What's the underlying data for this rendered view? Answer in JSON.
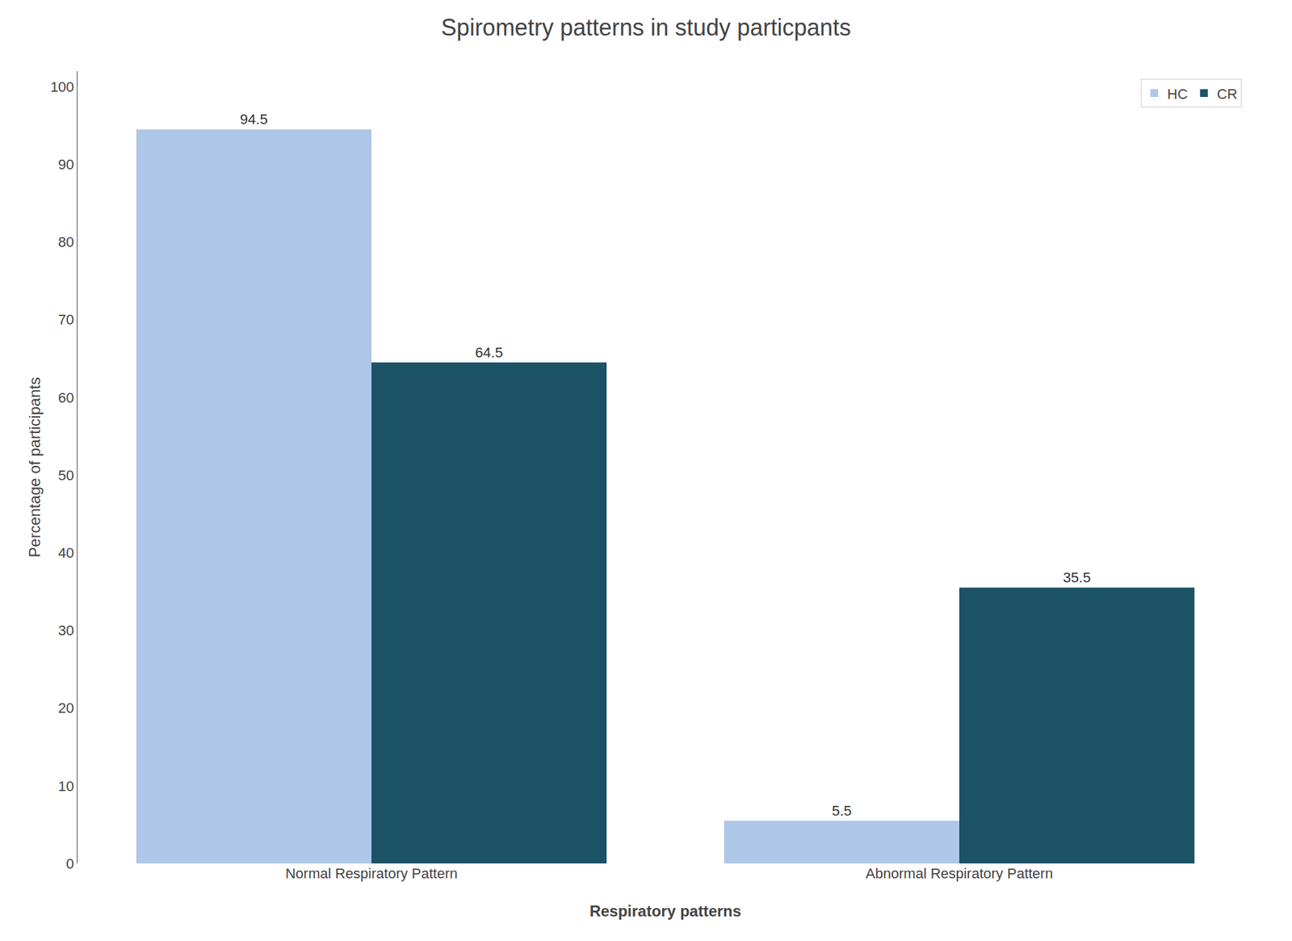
{
  "chart_data": {
    "type": "bar",
    "title": "Spirometry patterns in study particpants",
    "xlabel": "Respiratory patterns",
    "ylabel": "Percentage of participants",
    "categories": [
      "Normal Respiratory Pattern",
      "Abnormal Respiratory Pattern"
    ],
    "series": [
      {
        "name": "HC",
        "color": "#aec6e8",
        "values": [
          94.5,
          5.5
        ]
      },
      {
        "name": "CR",
        "color": "#1b5266",
        "values": [
          64.5,
          35.5
        ]
      }
    ],
    "ylim": [
      0,
      102
    ],
    "yticks": [
      0,
      10,
      20,
      30,
      40,
      50,
      60,
      70,
      80,
      90,
      100
    ],
    "grid": false,
    "legend": "upper right",
    "data_labels": true
  }
}
